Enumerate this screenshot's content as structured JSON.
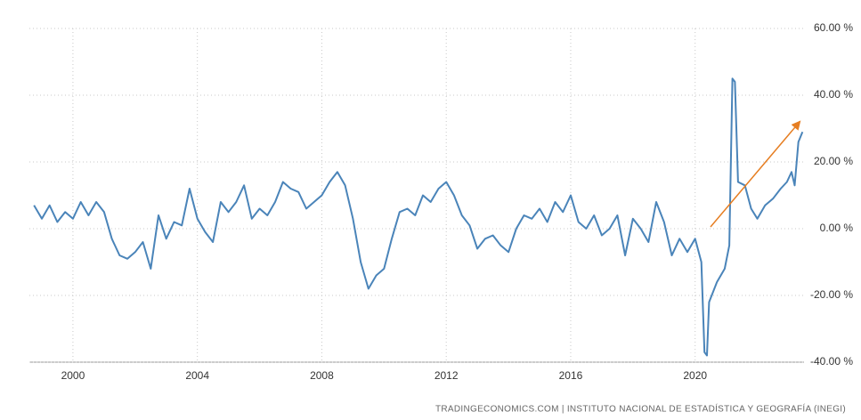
{
  "chart_data": {
    "type": "line",
    "source": "TRADINGECONOMICS.COM | INSTITUTO NACIONAL DE ESTADÍSTICA Y GEOGRAFÍA (INEGI)",
    "x": [
      1998.75,
      1999.0,
      1999.25,
      1999.5,
      1999.75,
      2000.0,
      2000.25,
      2000.5,
      2000.75,
      2001.0,
      2001.25,
      2001.5,
      2001.75,
      2002.0,
      2002.25,
      2002.5,
      2002.75,
      2003.0,
      2003.25,
      2003.5,
      2003.75,
      2004.0,
      2004.25,
      2004.5,
      2004.75,
      2005.0,
      2005.25,
      2005.5,
      2005.75,
      2006.0,
      2006.25,
      2006.5,
      2006.75,
      2007.0,
      2007.25,
      2007.5,
      2007.75,
      2008.0,
      2008.25,
      2008.5,
      2008.75,
      2009.0,
      2009.25,
      2009.5,
      2009.75,
      2010.0,
      2010.25,
      2010.5,
      2010.75,
      2011.0,
      2011.25,
      2011.5,
      2011.75,
      2012.0,
      2012.25,
      2012.5,
      2012.75,
      2013.0,
      2013.25,
      2013.5,
      2013.75,
      2014.0,
      2014.25,
      2014.5,
      2014.75,
      2015.0,
      2015.25,
      2015.5,
      2015.75,
      2016.0,
      2016.25,
      2016.5,
      2016.75,
      2017.0,
      2017.25,
      2017.5,
      2017.75,
      2018.0,
      2018.25,
      2018.5,
      2018.75,
      2019.0,
      2019.25,
      2019.5,
      2019.75,
      2020.0,
      2020.2,
      2020.3,
      2020.38,
      2020.45,
      2020.7,
      2020.95,
      2021.1,
      2021.2,
      2021.28,
      2021.38,
      2021.6,
      2021.8,
      2022.0,
      2022.25,
      2022.5,
      2022.75,
      2022.95,
      2023.1,
      2023.2,
      2023.32,
      2023.45
    ],
    "series": [
      {
        "color": "#4a84b9",
        "values": [
          7,
          3,
          7,
          2,
          5,
          3,
          8,
          4,
          8,
          5,
          -3,
          -8,
          -9,
          -7,
          -4,
          -12,
          4,
          -3,
          2,
          1,
          12,
          3,
          -1,
          -4,
          8,
          5,
          8,
          13,
          3,
          6,
          4,
          8,
          14,
          12,
          11,
          6,
          8,
          10,
          14,
          17,
          13,
          3,
          -10,
          -18,
          -14,
          -12,
          -3,
          5,
          6,
          4,
          10,
          8,
          12,
          14,
          10,
          4,
          1,
          -6,
          -3,
          -2,
          -5,
          -7,
          0,
          4,
          3,
          6,
          2,
          8,
          5,
          10,
          2,
          0,
          4,
          -2,
          0,
          4,
          -8,
          3,
          0,
          -4,
          8,
          2,
          -8,
          -3,
          -7,
          -3,
          -10,
          -37,
          -38,
          -22,
          -16,
          -12,
          -5,
          45,
          44,
          14,
          13,
          6,
          3,
          7,
          9,
          12,
          14,
          17,
          13,
          26,
          29
        ]
      }
    ],
    "xlim": [
      1998.6,
      2023.5
    ],
    "xticks": [
      2000,
      2004,
      2008,
      2012,
      2016,
      2020
    ],
    "ylim": [
      -40,
      60
    ],
    "yticks": [
      {
        "value": -40,
        "label": "-40.00 %"
      },
      {
        "value": -20,
        "label": "-20.00 %"
      },
      {
        "value": 0,
        "label": "0.00 %"
      },
      {
        "value": 20,
        "label": "20.00 %"
      },
      {
        "value": 40,
        "label": "40.00 %"
      },
      {
        "value": 60,
        "label": "60.00 %"
      }
    ],
    "grid": true
  }
}
